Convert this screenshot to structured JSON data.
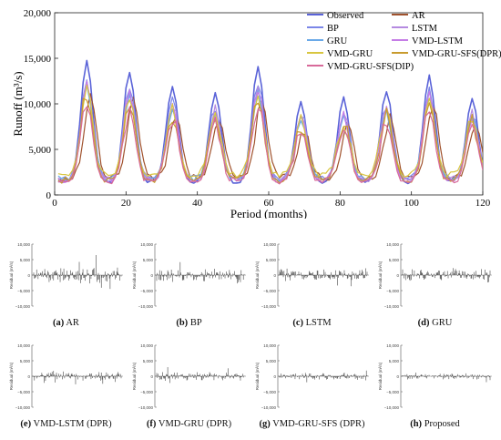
{
  "chart_data": [
    {
      "type": "line",
      "title": "",
      "xlabel": "Period (months)",
      "ylabel": "Runoff (m³/s)",
      "xlim": [
        0,
        120
      ],
      "ylim": [
        0,
        20000
      ],
      "x_ticks": [
        "0",
        "20",
        "40",
        "60",
        "80",
        "100",
        "120"
      ],
      "y_ticks": [
        "0",
        "5,000",
        "10,000",
        "15,000",
        "20,000"
      ],
      "grid": false,
      "legend_position": "top-right",
      "observed_annual_peaks": [
        {
          "month": 9,
          "value": 14800
        },
        {
          "month": 21,
          "value": 13600
        },
        {
          "month": 33,
          "value": 11900
        },
        {
          "month": 45,
          "value": 11300
        },
        {
          "month": 57,
          "value": 14200
        },
        {
          "month": 69,
          "value": 10100
        },
        {
          "month": 81,
          "value": 10600
        },
        {
          "month": 93,
          "value": 11500
        },
        {
          "month": 105,
          "value": 13000
        },
        {
          "month": 117,
          "value": 10700
        }
      ],
      "series": [
        {
          "name": "Observed",
          "color": "#5a63d8",
          "peak_scale": 1.0,
          "base": 1400,
          "phase": 0,
          "noise": 0
        },
        {
          "name": "AR",
          "color": "#a0522d",
          "peak_scale": 0.74,
          "base": 1900,
          "phase": 1,
          "noise": 1
        },
        {
          "name": "BP",
          "color": "#7b86e8",
          "peak_scale": 0.86,
          "base": 1800,
          "phase": 0,
          "noise": 2
        },
        {
          "name": "LSTM",
          "color": "#b58ae0",
          "peak_scale": 0.84,
          "base": 1700,
          "phase": 0,
          "noise": 3
        },
        {
          "name": "GRU",
          "color": "#6aa9e8",
          "peak_scale": 0.8,
          "base": 1750,
          "phase": 0,
          "noise": 4
        },
        {
          "name": "VMD-LSTM",
          "color": "#c57de6",
          "peak_scale": 0.82,
          "base": 1650,
          "phase": 0,
          "noise": 5
        },
        {
          "name": "VMD-GRU",
          "color": "#d8c640",
          "peak_scale": 0.78,
          "base": 2200,
          "phase": 0,
          "noise": 6
        },
        {
          "name": "VMD-GRU-SFS(DPR)",
          "color": "#c89b2e",
          "peak_scale": 0.76,
          "base": 1600,
          "phase": 0,
          "noise": 7
        },
        {
          "name": "VMD-GRU-SFS(DIP)",
          "color": "#d86a9a",
          "peak_scale": 0.7,
          "base": 1500,
          "phase": 0,
          "noise": 8
        }
      ]
    },
    {
      "type": "bar",
      "panels": [
        {
          "label": "(a)",
          "name": "AR",
          "amp": 3000,
          "seed": 11
        },
        {
          "label": "(b)",
          "name": "BP",
          "amp": 2600,
          "seed": 23
        },
        {
          "label": "(c)",
          "name": "LSTM",
          "amp": 2600,
          "seed": 37
        },
        {
          "label": "(d)",
          "name": "GRU",
          "amp": 2700,
          "seed": 41
        },
        {
          "label": "(e)",
          "name": "VMD-LSTM (DPR)",
          "amp": 1900,
          "seed": 53
        },
        {
          "label": "(f)",
          "name": "VMD-GRU (DPR)",
          "amp": 1700,
          "seed": 67
        },
        {
          "label": "(g)",
          "name": "VMD-GRU-SFS (DPR)",
          "amp": 1300,
          "seed": 71
        },
        {
          "label": "(h)",
          "name": "Proposed",
          "amp": 1100,
          "seed": 89
        }
      ],
      "ylabel": "Residual (m³/s)",
      "ylim": [
        -10000,
        10000
      ],
      "y_ticks": [
        "10,000",
        "5,000",
        "0",
        "−5,000",
        "−10,000"
      ],
      "points": 120
    }
  ]
}
